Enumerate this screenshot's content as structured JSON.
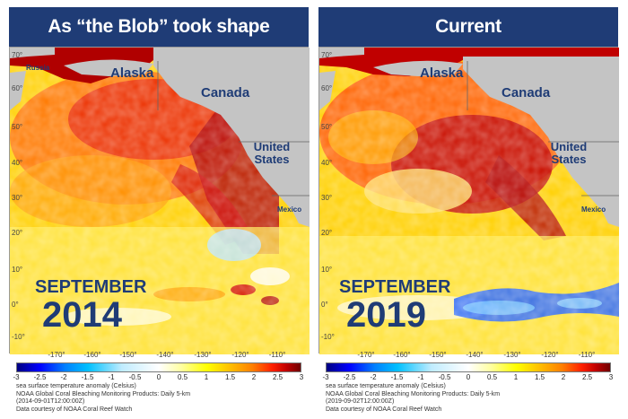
{
  "panels": [
    {
      "title": "As “the Blob” took shape",
      "month": "SEPTEMBER",
      "year": "2014",
      "caption": [
        "sea surface temperature anomaly (Celsius)",
        "NOAA Global Coral Bleaching Monitoring Products: Daily 5-km",
        "(2014-09-01T12:00:00Z)",
        "Data courtesy of NOAA Coral Reef Watch"
      ]
    },
    {
      "title": "Current",
      "month": "SEPTEMBER",
      "year": "2019",
      "caption": [
        "sea surface temperature anomaly (Celsius)",
        "NOAA Global Coral Bleaching Monitoring Products: Daily 5-km",
        "(2019-09-02T12:00:00Z)",
        "Data courtesy of NOAA Coral Reef Watch"
      ]
    }
  ],
  "regions": {
    "russia": "Russia",
    "alaska": "Alaska",
    "canada": "Canada",
    "united_states": "United States",
    "mexico": "Mexico"
  },
  "lat_labels": [
    "70°",
    "60°",
    "50°",
    "40°",
    "30°",
    "20°",
    "10°",
    "0°",
    "-10°"
  ],
  "lon_labels": [
    "-170°",
    "-160°",
    "-150°",
    "-140°",
    "-130°",
    "-120°",
    "-110°"
  ],
  "colorbar": {
    "ticks": [
      "-3",
      "-2.5",
      "-2",
      "-1.5",
      "-1",
      "-0.5",
      "0",
      "0.5",
      "1",
      "1.5",
      "2",
      "2.5",
      "3"
    ],
    "colors": [
      "#000080",
      "#0000ff",
      "#0080ff",
      "#00c0ff",
      "#c0ecff",
      "#ffffff",
      "#ffffa0",
      "#ffff00",
      "#ffc000",
      "#ff8000",
      "#ff2000",
      "#c00000",
      "#700000"
    ]
  },
  "colors": {
    "header_bg": "#1f3c76",
    "label_navy": "#1f3c76",
    "land": "#c4c4c4"
  }
}
